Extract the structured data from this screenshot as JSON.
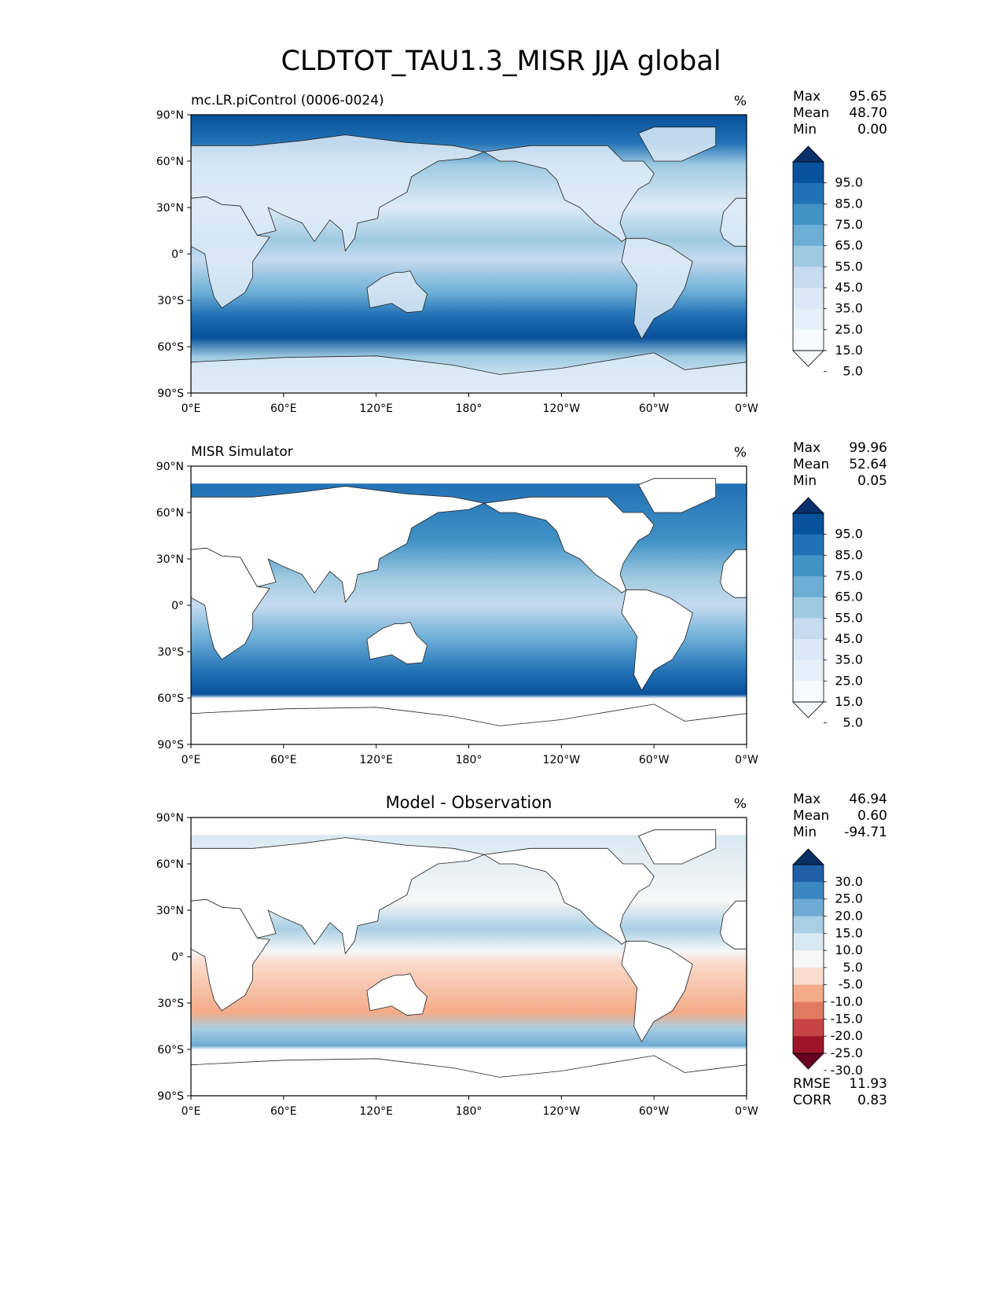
{
  "figure": {
    "title": "CLDTOT_TAU1.3_MISR JJA global"
  },
  "chart_data": [
    {
      "type": "heatmap",
      "title": "mc.LR.piControl (0006-0024)",
      "units": "%",
      "stats": {
        "max_label": "Max",
        "max": "95.65",
        "mean_label": "Mean",
        "mean": "48.70",
        "min_label": "Min",
        "min": "0.00"
      },
      "xticks": [
        "0°E",
        "60°E",
        "120°E",
        "180°",
        "120°W",
        "60°W",
        "0°W"
      ],
      "yticks": [
        "90°N",
        "60°N",
        "30°N",
        "0°",
        "30°S",
        "60°S",
        "90°S"
      ],
      "xlim": [
        0,
        360
      ],
      "ylim": [
        -90,
        90
      ],
      "colorbar": {
        "labels": [
          "95.0",
          "85.0",
          "75.0",
          "65.0",
          "55.0",
          "45.0",
          "35.0",
          "25.0",
          "15.0",
          "5.0"
        ],
        "colors": [
          "#08306b",
          "#08519c",
          "#2171b5",
          "#4292c6",
          "#6baed6",
          "#9ecae1",
          "#c6dbef",
          "#dbe9f6",
          "#e6f0f9",
          "#f7fbff"
        ]
      }
    },
    {
      "type": "heatmap",
      "title": "MISR Simulator",
      "units": "%",
      "stats": {
        "max_label": "Max",
        "max": "99.96",
        "mean_label": "Mean",
        "mean": "52.64",
        "min_label": "Min",
        "min": "0.05"
      },
      "xticks": [
        "0°E",
        "60°E",
        "120°E",
        "180°",
        "120°W",
        "60°W",
        "0°W"
      ],
      "yticks": [
        "90°N",
        "60°N",
        "30°N",
        "0°",
        "30°S",
        "60°S",
        "90°S"
      ],
      "xlim": [
        0,
        360
      ],
      "ylim": [
        -90,
        90
      ],
      "colorbar": {
        "labels": [
          "95.0",
          "85.0",
          "75.0",
          "65.0",
          "55.0",
          "45.0",
          "35.0",
          "25.0",
          "15.0",
          "5.0"
        ],
        "colors": [
          "#08306b",
          "#08519c",
          "#2171b5",
          "#4292c6",
          "#6baed6",
          "#9ecae1",
          "#c6dbef",
          "#dbe9f6",
          "#e6f0f9",
          "#f7fbff"
        ]
      }
    },
    {
      "type": "heatmap",
      "title": "Model - Observation",
      "units": "%",
      "stats": {
        "max_label": "Max",
        "max": "46.94",
        "mean_label": "Mean",
        "mean": "0.60",
        "min_label": "Min",
        "min": "-94.71"
      },
      "error_stats": {
        "rmse_label": "RMSE",
        "rmse": "11.93",
        "corr_label": "CORR",
        "corr": "0.83"
      },
      "xticks": [
        "0°E",
        "60°E",
        "120°E",
        "180°",
        "120°W",
        "60°W",
        "0°W"
      ],
      "yticks": [
        "90°N",
        "60°N",
        "30°N",
        "0°",
        "30°S",
        "60°S",
        "90°S"
      ],
      "xlim": [
        0,
        360
      ],
      "ylim": [
        -90,
        90
      ],
      "colorbar": {
        "labels": [
          "30.0",
          "25.0",
          "20.0",
          "15.0",
          "10.0",
          "5.0",
          "-5.0",
          "-10.0",
          "-15.0",
          "-20.0",
          "-25.0",
          "-30.0"
        ],
        "colors": [
          "#053061",
          "#1f5fa5",
          "#3b87c2",
          "#6eaad3",
          "#a8cfe4",
          "#d9e9f2",
          "#f7f7f7",
          "#f9dccd",
          "#f4ab88",
          "#e07b61",
          "#c84344",
          "#a01429",
          "#67001f"
        ]
      }
    }
  ]
}
